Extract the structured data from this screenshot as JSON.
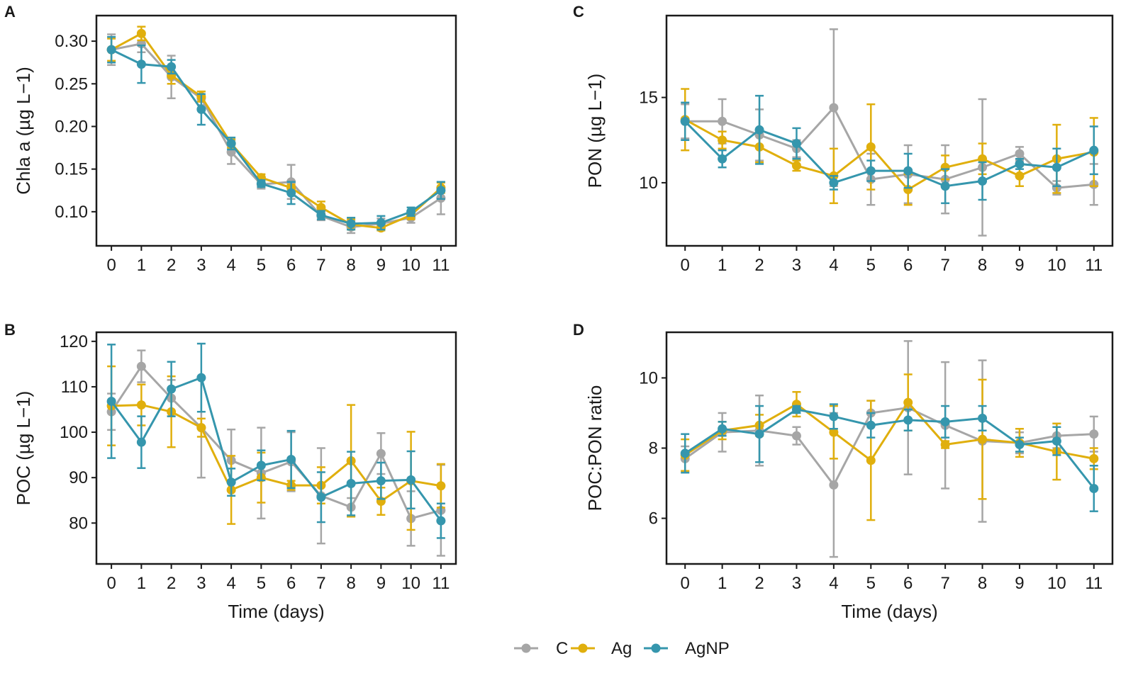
{
  "legend": {
    "items": [
      {
        "label": "C",
        "color": "#a6a6a6"
      },
      {
        "label": "Ag",
        "color": "#e0af0d"
      },
      {
        "label": "AgNP",
        "color": "#3596ad"
      }
    ]
  },
  "chart_data": [
    {
      "panel": "A",
      "type": "line",
      "ylabel": "Chla a (µg L−1)",
      "xlabel": "",
      "x": [
        0,
        1,
        2,
        3,
        4,
        5,
        6,
        7,
        8,
        9,
        10,
        11
      ],
      "xlim": [
        -0.5,
        11.5
      ],
      "ylim": [
        0.06,
        0.33
      ],
      "yticks": [
        0.1,
        0.15,
        0.2,
        0.25,
        0.3
      ],
      "ytick_labels": [
        "0.10",
        "0.15",
        "0.20",
        "0.25",
        "0.30"
      ],
      "series": [
        {
          "name": "C",
          "values": [
            0.29,
            0.297,
            0.258,
            0.233,
            0.17,
            0.132,
            0.135,
            0.095,
            0.082,
            0.086,
            0.093,
            0.116
          ],
          "errors": [
            0.018,
            0.01,
            0.025,
            0.008,
            0.014,
            0.005,
            0.02,
            0.005,
            0.007,
            0.006,
            0.006,
            0.019
          ]
        },
        {
          "name": "Ag",
          "values": [
            0.29,
            0.309,
            0.26,
            0.235,
            0.18,
            0.14,
            0.128,
            0.105,
            0.085,
            0.081,
            0.096,
            0.128
          ],
          "errors": [
            0.013,
            0.008,
            0.01,
            0.006,
            0.005,
            0.004,
            0.004,
            0.007,
            0.006,
            0.003,
            0.005,
            0.006
          ]
        },
        {
          "name": "AgNP",
          "values": [
            0.29,
            0.273,
            0.27,
            0.22,
            0.18,
            0.133,
            0.122,
            0.096,
            0.086,
            0.087,
            0.1,
            0.125
          ],
          "errors": [
            0.015,
            0.022,
            0.008,
            0.018,
            0.007,
            0.004,
            0.013,
            0.005,
            0.007,
            0.008,
            0.005,
            0.01
          ]
        }
      ]
    },
    {
      "panel": "B",
      "type": "line",
      "ylabel": "POC (µg L−1)",
      "xlabel": "Time (days)",
      "x": [
        0,
        1,
        2,
        3,
        4,
        5,
        6,
        7,
        8,
        9,
        10,
        11
      ],
      "xlim": [
        -0.5,
        11.5
      ],
      "ylim": [
        71,
        122
      ],
      "yticks": [
        80,
        90,
        100,
        110,
        120
      ],
      "ytick_labels": [
        "80",
        "90",
        "100",
        "110",
        "120"
      ],
      "series": [
        {
          "name": "C",
          "values": [
            104.5,
            114.5,
            107.5,
            101.0,
            93.8,
            91.0,
            93.5,
            86.0,
            83.5,
            95.3,
            81.0,
            82.8
          ],
          "errors": [
            4.0,
            3.5,
            4.0,
            11.0,
            6.8,
            10.0,
            6.5,
            10.5,
            2.0,
            4.5,
            6.0,
            10.0
          ]
        },
        {
          "name": "Ag",
          "values": [
            105.8,
            106.0,
            104.5,
            101.0,
            87.3,
            90.0,
            88.3,
            88.3,
            93.7,
            84.8,
            89.3,
            88.2
          ],
          "errors": [
            8.7,
            4.5,
            7.8,
            2.0,
            7.5,
            5.5,
            1.0,
            4.0,
            12.3,
            3.0,
            10.8,
            4.8
          ]
        },
        {
          "name": "AgNP",
          "values": [
            106.8,
            97.8,
            109.5,
            112.0,
            89.0,
            92.7,
            94.0,
            85.7,
            88.7,
            89.3,
            89.5,
            80.5
          ],
          "errors": [
            12.5,
            5.7,
            6.0,
            7.5,
            3.0,
            3.3,
            6.3,
            5.5,
            7.0,
            4.0,
            6.3,
            3.8
          ]
        }
      ]
    },
    {
      "panel": "C",
      "type": "line",
      "ylabel": "PON (µg L−1)",
      "xlabel": "",
      "x": [
        0,
        1,
        2,
        3,
        4,
        5,
        6,
        7,
        8,
        9,
        10,
        11
      ],
      "xlim": [
        -0.5,
        11.5
      ],
      "ylim": [
        6.3,
        19.8
      ],
      "yticks": [
        10,
        15
      ],
      "ytick_labels": [
        "10",
        "15"
      ],
      "series": [
        {
          "name": "C",
          "values": [
            13.6,
            13.6,
            12.8,
            12.0,
            14.4,
            10.2,
            10.5,
            10.2,
            10.9,
            11.7,
            9.7,
            9.9
          ],
          "errors": [
            1.0,
            1.3,
            1.5,
            0.5,
            4.6,
            1.5,
            1.7,
            2.0,
            4.0,
            0.4,
            0.4,
            1.2
          ]
        },
        {
          "name": "Ag",
          "values": [
            13.7,
            12.5,
            12.1,
            11.0,
            10.4,
            12.1,
            9.6,
            10.9,
            11.4,
            10.4,
            11.4,
            11.8
          ],
          "errors": [
            1.8,
            0.5,
            0.9,
            0.3,
            1.6,
            2.5,
            0.9,
            0.7,
            0.9,
            0.6,
            2.0,
            2.0
          ]
        },
        {
          "name": "AgNP",
          "values": [
            13.6,
            11.4,
            13.1,
            12.3,
            10.0,
            10.7,
            10.7,
            9.8,
            10.1,
            11.1,
            10.9,
            11.9
          ],
          "errors": [
            1.1,
            0.5,
            2.0,
            0.9,
            0.4,
            0.6,
            1.0,
            1.0,
            1.1,
            0.3,
            1.1,
            1.4
          ]
        }
      ]
    },
    {
      "panel": "D",
      "type": "line",
      "ylabel": "POC:PON ratio",
      "xlabel": "Time (days)",
      "x": [
        0,
        1,
        2,
        3,
        4,
        5,
        6,
        7,
        8,
        9,
        10,
        11
      ],
      "xlim": [
        -0.5,
        11.5
      ],
      "ylim": [
        4.7,
        11.3
      ],
      "yticks": [
        6,
        8,
        10
      ],
      "ytick_labels": [
        "6",
        "8",
        "10"
      ],
      "series": [
        {
          "name": "C",
          "values": [
            7.7,
            8.45,
            8.5,
            8.35,
            6.95,
            9.0,
            9.15,
            8.65,
            8.2,
            8.15,
            8.35,
            8.4
          ],
          "errors": [
            0.35,
            0.55,
            1.0,
            0.25,
            2.05,
            0.35,
            1.9,
            1.8,
            2.3,
            0.3,
            0.35,
            0.5
          ]
        },
        {
          "name": "Ag",
          "values": [
            7.8,
            8.5,
            8.65,
            9.25,
            8.45,
            7.65,
            9.3,
            8.1,
            8.25,
            8.15,
            7.9,
            7.7
          ]
        },
        {
          "name": "AgNP",
          "values": [
            7.85,
            8.55,
            8.4,
            9.1,
            8.9,
            8.65,
            8.8,
            8.75,
            8.85,
            8.1,
            8.2,
            6.85
          ],
          "errors": [
            0.55,
            0.2,
            0.8,
            0.1,
            0.35,
            0.35,
            0.3,
            0.45,
            0.35,
            0.2,
            0.4,
            0.65
          ]
        }
      ]
    }
  ]
}
